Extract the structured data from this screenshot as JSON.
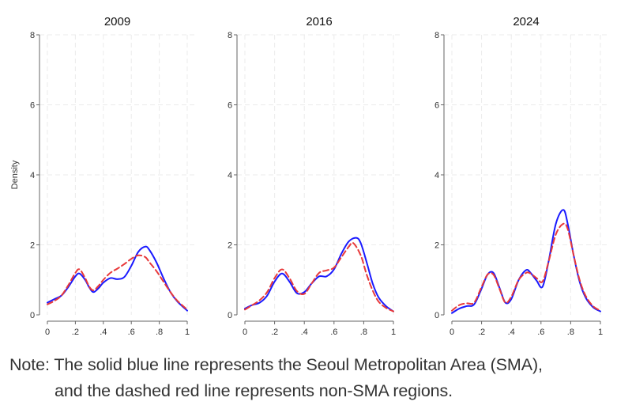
{
  "chart_data": [
    {
      "type": "line",
      "title": "2009",
      "ylabel": "Density",
      "xlabel": "",
      "xlim": [
        0,
        1
      ],
      "ylim": [
        0,
        8
      ],
      "x_ticks": [
        0,
        0.2,
        0.4,
        0.6,
        0.8,
        1
      ],
      "x_tick_labels": [
        "0",
        ".2",
        ".4",
        ".6",
        ".8",
        "1"
      ],
      "y_ticks": [
        0,
        2,
        4,
        6,
        8
      ],
      "y_tick_labels": [
        "0",
        "2",
        "4",
        "6",
        "8"
      ],
      "grid": true,
      "series": [
        {
          "style": "solid",
          "color": "#1a1aff",
          "x": [
            0,
            0.05,
            0.1,
            0.15,
            0.2,
            0.23,
            0.27,
            0.3,
            0.33,
            0.37,
            0.4,
            0.45,
            0.5,
            0.55,
            0.6,
            0.65,
            0.7,
            0.73,
            0.78,
            0.83,
            0.88,
            0.93,
            1.0
          ],
          "y": [
            0.35,
            0.45,
            0.55,
            0.8,
            1.1,
            1.18,
            1.0,
            0.78,
            0.65,
            0.78,
            0.92,
            1.05,
            1.02,
            1.08,
            1.4,
            1.8,
            1.95,
            1.85,
            1.5,
            1.05,
            0.65,
            0.38,
            0.12
          ]
        },
        {
          "style": "dashed",
          "color": "#e8393a",
          "x": [
            0,
            0.05,
            0.1,
            0.15,
            0.2,
            0.23,
            0.27,
            0.3,
            0.33,
            0.37,
            0.4,
            0.45,
            0.5,
            0.55,
            0.6,
            0.65,
            0.7,
            0.73,
            0.78,
            0.83,
            0.88,
            0.93,
            1.0
          ],
          "y": [
            0.3,
            0.4,
            0.55,
            0.85,
            1.2,
            1.3,
            1.05,
            0.8,
            0.7,
            0.85,
            1.0,
            1.2,
            1.32,
            1.45,
            1.6,
            1.7,
            1.65,
            1.5,
            1.25,
            0.95,
            0.65,
            0.4,
            0.15
          ]
        }
      ]
    },
    {
      "type": "line",
      "title": "2016",
      "ylabel": "",
      "xlabel": "",
      "xlim": [
        0,
        1
      ],
      "ylim": [
        0,
        8
      ],
      "x_ticks": [
        0,
        0.2,
        0.4,
        0.6,
        0.8,
        1
      ],
      "x_tick_labels": [
        "0",
        ".2",
        ".4",
        ".6",
        ".8",
        "1"
      ],
      "y_ticks": [
        0,
        2,
        4,
        6,
        8
      ],
      "y_tick_labels": [
        "0",
        "2",
        "4",
        "6",
        "8"
      ],
      "grid": true,
      "series": [
        {
          "style": "solid",
          "color": "#1a1aff",
          "x": [
            0,
            0.05,
            0.1,
            0.15,
            0.2,
            0.25,
            0.3,
            0.35,
            0.4,
            0.45,
            0.5,
            0.55,
            0.6,
            0.65,
            0.7,
            0.75,
            0.78,
            0.82,
            0.86,
            0.9,
            0.95,
            1.0
          ],
          "y": [
            0.18,
            0.28,
            0.35,
            0.55,
            0.95,
            1.18,
            0.95,
            0.62,
            0.65,
            0.9,
            1.1,
            1.1,
            1.3,
            1.75,
            2.1,
            2.2,
            2.05,
            1.5,
            0.9,
            0.5,
            0.25,
            0.1
          ]
        },
        {
          "style": "dashed",
          "color": "#e8393a",
          "x": [
            0,
            0.05,
            0.1,
            0.15,
            0.2,
            0.25,
            0.3,
            0.35,
            0.4,
            0.45,
            0.5,
            0.55,
            0.6,
            0.65,
            0.7,
            0.73,
            0.78,
            0.82,
            0.86,
            0.9,
            0.95,
            1.0
          ],
          "y": [
            0.15,
            0.28,
            0.42,
            0.65,
            1.05,
            1.3,
            1.05,
            0.68,
            0.6,
            0.9,
            1.2,
            1.27,
            1.35,
            1.65,
            1.95,
            2.05,
            1.7,
            1.15,
            0.7,
            0.38,
            0.2,
            0.1
          ]
        }
      ]
    },
    {
      "type": "line",
      "title": "2024",
      "ylabel": "",
      "xlabel": "",
      "xlim": [
        0,
        1
      ],
      "ylim": [
        0,
        8
      ],
      "x_ticks": [
        0,
        0.2,
        0.4,
        0.6,
        0.8,
        1
      ],
      "x_tick_labels": [
        "0",
        ".2",
        ".4",
        ".6",
        ".8",
        "1"
      ],
      "y_ticks": [
        0,
        2,
        4,
        6,
        8
      ],
      "y_tick_labels": [
        "0",
        "2",
        "4",
        "6",
        "8"
      ],
      "grid": true,
      "series": [
        {
          "style": "solid",
          "color": "#1a1aff",
          "x": [
            0,
            0.05,
            0.1,
            0.15,
            0.2,
            0.24,
            0.28,
            0.32,
            0.36,
            0.4,
            0.45,
            0.5,
            0.53,
            0.57,
            0.61,
            0.65,
            0.7,
            0.75,
            0.78,
            0.82,
            0.86,
            0.9,
            0.95,
            1.0
          ],
          "y": [
            0.05,
            0.18,
            0.25,
            0.3,
            0.75,
            1.15,
            1.2,
            0.78,
            0.35,
            0.45,
            1.0,
            1.28,
            1.2,
            0.98,
            0.8,
            1.5,
            2.6,
            3.0,
            2.6,
            1.7,
            0.95,
            0.5,
            0.22,
            0.1
          ]
        },
        {
          "style": "dashed",
          "color": "#e8393a",
          "x": [
            0,
            0.05,
            0.1,
            0.15,
            0.2,
            0.24,
            0.28,
            0.32,
            0.36,
            0.4,
            0.45,
            0.5,
            0.53,
            0.57,
            0.61,
            0.65,
            0.7,
            0.75,
            0.78,
            0.82,
            0.86,
            0.9,
            0.95,
            1.0
          ],
          "y": [
            0.12,
            0.28,
            0.33,
            0.35,
            0.8,
            1.15,
            1.15,
            0.75,
            0.35,
            0.52,
            1.0,
            1.2,
            1.18,
            1.05,
            0.95,
            1.5,
            2.3,
            2.6,
            2.45,
            1.7,
            1.0,
            0.55,
            0.25,
            0.12
          ]
        }
      ]
    }
  ],
  "note": {
    "line1": "Note: The solid blue line represents the Seoul Metropolitan Area (SMA),",
    "line2": "and the dashed red line represents non-SMA regions."
  }
}
